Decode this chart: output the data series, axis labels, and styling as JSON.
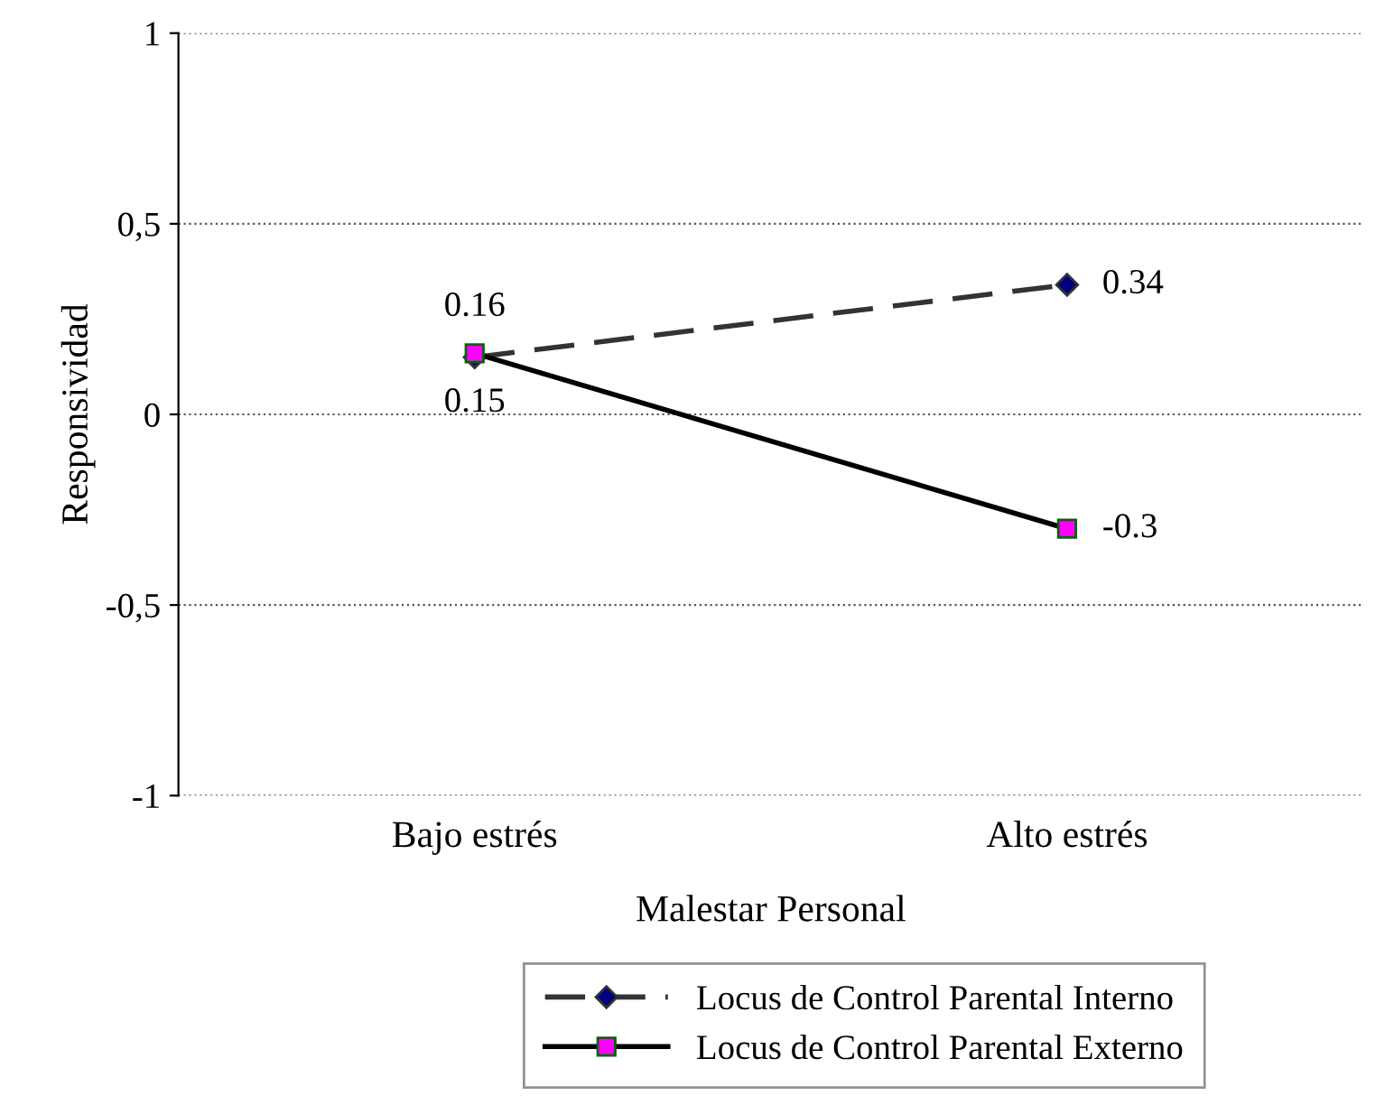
{
  "chart_data": {
    "type": "line",
    "xlabel": "Malestar Personal",
    "ylabel": "Responsividad",
    "categories": [
      "Bajo estrés",
      "Alto estrés"
    ],
    "series": [
      {
        "name": "Locus de Control Parental Interno",
        "color": "#000080",
        "values": [
          0.15,
          0.34
        ],
        "marker": "diamond",
        "line_style": "dashed",
        "value_labels": [
          "0.15",
          "0.34"
        ]
      },
      {
        "name": "Locus de Control Parental Externo",
        "color": "#ff00ff",
        "values": [
          0.16,
          -0.3
        ],
        "marker": "square",
        "line_style": "solid",
        "value_labels": [
          "0.16",
          "-0.3"
        ]
      }
    ],
    "ylim": [
      -1,
      1
    ],
    "yticks": [
      1,
      {
        "value": 0.5,
        "label": "0,5"
      },
      0,
      {
        "value": -0.5,
        "label": "-0,5"
      },
      -1
    ],
    "grid": "y",
    "legend": "bottom"
  }
}
